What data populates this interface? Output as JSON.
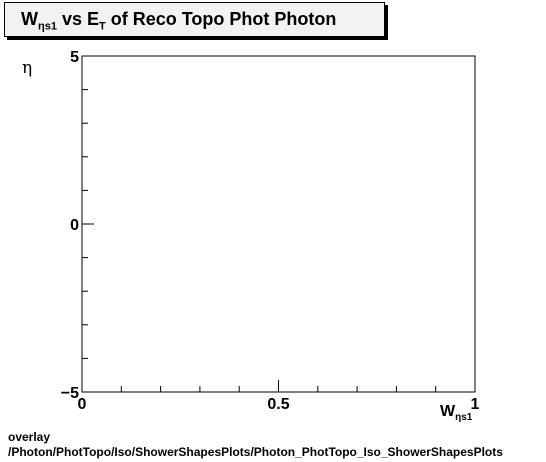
{
  "title": {
    "main": "W",
    "main_sub": "ηs1",
    "vs": " vs E",
    "vs_sub": "T",
    "rest": " of Reco Topo Phot Photon"
  },
  "axes": {
    "ylabel": "η",
    "xlabel_main": "W",
    "xlabel_sub": "ηs1"
  },
  "footer": {
    "line1": "overlay",
    "line2": "/Photon/PhotTopo/Iso/ShowerShapesPlots/Photon_PhotTopo_Iso_ShowerShapesPlots"
  },
  "chart_data": {
    "type": "scatter",
    "title": "W_ηs1 vs E_T of Reco Topo Phot Photon",
    "xlabel": "W_ηs1",
    "ylabel": "η",
    "xlim": [
      0,
      1
    ],
    "ylim": [
      -5,
      5
    ],
    "x_ticks": [
      {
        "value": 0,
        "label": "0"
      },
      {
        "value": 0.5,
        "label": "0.5"
      },
      {
        "value": 1,
        "label": "1"
      }
    ],
    "y_ticks": [
      {
        "value": 5,
        "label": "5"
      },
      {
        "value": 0,
        "label": "0"
      },
      {
        "value": -5,
        "label": "−5"
      }
    ],
    "x_minor_step": 0.1,
    "y_minor_step": 1,
    "series": [],
    "grid": false,
    "legend": "none"
  }
}
